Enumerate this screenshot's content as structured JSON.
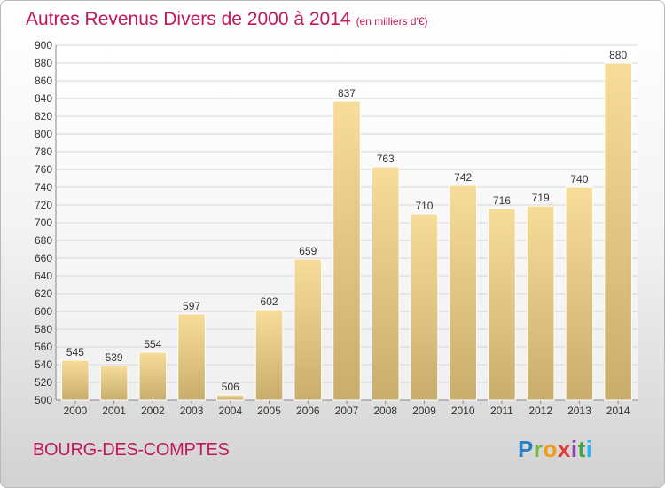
{
  "header": {
    "title": "Autres Revenus Divers de 2000 à 2014",
    "unit": "(en milliers d'€)"
  },
  "footer": {
    "location": "BOURG-DES-COMPTES",
    "logo": "Proxiti"
  },
  "colors": {
    "title": "#c2185b",
    "bar_top": "#f7dc9a",
    "bar_bottom": "#c9ad6c",
    "grid": "#d6d6d6"
  },
  "chart_data": {
    "type": "bar",
    "categories": [
      "2000",
      "2001",
      "2002",
      "2003",
      "2004",
      "2005",
      "2006",
      "2007",
      "2008",
      "2009",
      "2010",
      "2011",
      "2012",
      "2013",
      "2014"
    ],
    "values": [
      545,
      539,
      554,
      597,
      506,
      602,
      659,
      837,
      763,
      710,
      742,
      716,
      719,
      740,
      880
    ],
    "title": "Autres Revenus Divers de 2000 à 2014",
    "subtitle": "(en milliers d'€)",
    "xlabel": "",
    "ylabel": "",
    "ylim": [
      500,
      900
    ],
    "ytick_step": 20,
    "grid": true,
    "legend": "none"
  }
}
